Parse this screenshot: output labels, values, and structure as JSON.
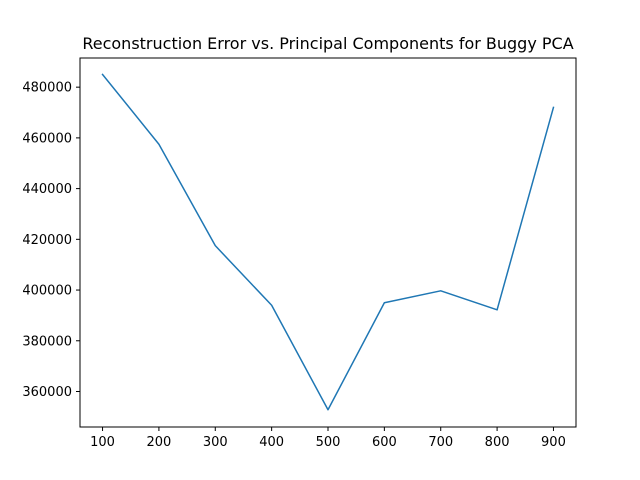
{
  "chart_data": {
    "type": "line",
    "title": "Reconstruction Error vs. Principal Components for Buggy PCA",
    "xlabel": "",
    "ylabel": "",
    "x": [
      100,
      200,
      300,
      400,
      500,
      600,
      700,
      800,
      900
    ],
    "series": [
      {
        "values": [
          485000,
          457500,
          417500,
          394000,
          352800,
          395000,
          399700,
          392200,
          472000
        ],
        "color": "#1f77b4"
      }
    ],
    "xlim": [
      60,
      940
    ],
    "ylim": [
      346000,
      491500
    ],
    "xticks": [
      100,
      200,
      300,
      400,
      500,
      600,
      700,
      800,
      900
    ],
    "yticks": [
      360000,
      380000,
      400000,
      420000,
      440000,
      460000,
      480000
    ],
    "grid": false,
    "legend": "none"
  }
}
